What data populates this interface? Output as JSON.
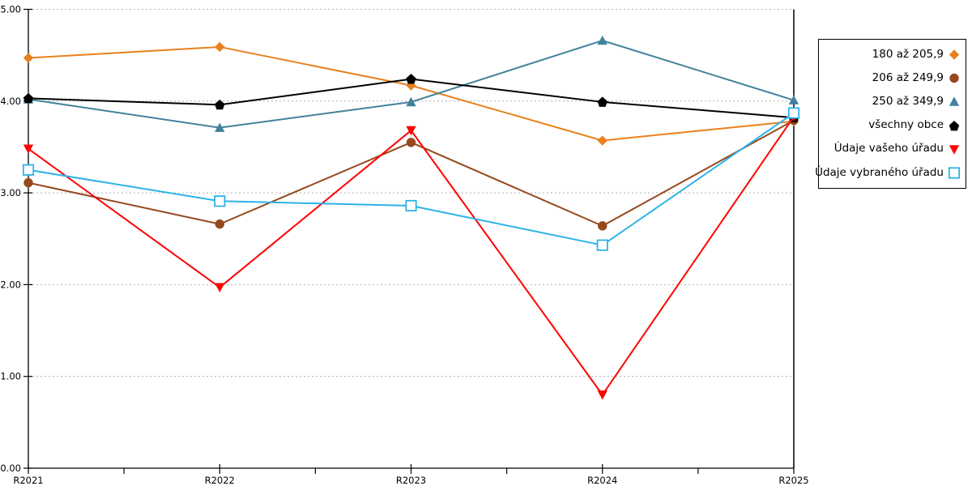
{
  "chart_data": {
    "type": "line",
    "categories": [
      "R2021",
      "R2022",
      "R2023",
      "R2024",
      "R2025"
    ],
    "series": [
      {
        "name": "180 až 205,9",
        "marker": "diamond",
        "color": "#E8811E",
        "values": [
          4.47,
          4.59,
          4.17,
          3.57,
          3.78
        ]
      },
      {
        "name": "206 až 249,9",
        "marker": "circle",
        "color": "#96491E",
        "values": [
          3.11,
          2.66,
          3.55,
          2.64,
          3.79
        ]
      },
      {
        "name": "250 až 349,9",
        "marker": "triangle-up",
        "color": "#41829B",
        "values": [
          4.02,
          3.71,
          3.99,
          4.66,
          4.01
        ]
      },
      {
        "name": "všechny obce",
        "marker": "pentagon",
        "color": "#000000",
        "values": [
          4.03,
          3.96,
          4.24,
          3.99,
          3.82
        ]
      },
      {
        "name": "Údaje vašeho úřadu",
        "marker": "triangle-down",
        "color": "#FF0000",
        "values": [
          3.48,
          1.97,
          3.68,
          0.8,
          3.83
        ]
      },
      {
        "name": "Údaje vybraného úřadu",
        "marker": "square-open",
        "color": "#2CB3E8",
        "values": [
          3.25,
          2.91,
          2.86,
          2.43,
          3.87
        ]
      }
    ],
    "title": "",
    "xlabel": "",
    "ylabel": "",
    "ylim": [
      0,
      5
    ],
    "y_ticks": [
      "0.00",
      "1.00",
      "2.00",
      "3.00",
      "4.00",
      "5.00"
    ],
    "grid": "horizontal-dotted",
    "grid_color": "#AFAFAF",
    "axis_color": "#000000",
    "legend_position": "right"
  }
}
